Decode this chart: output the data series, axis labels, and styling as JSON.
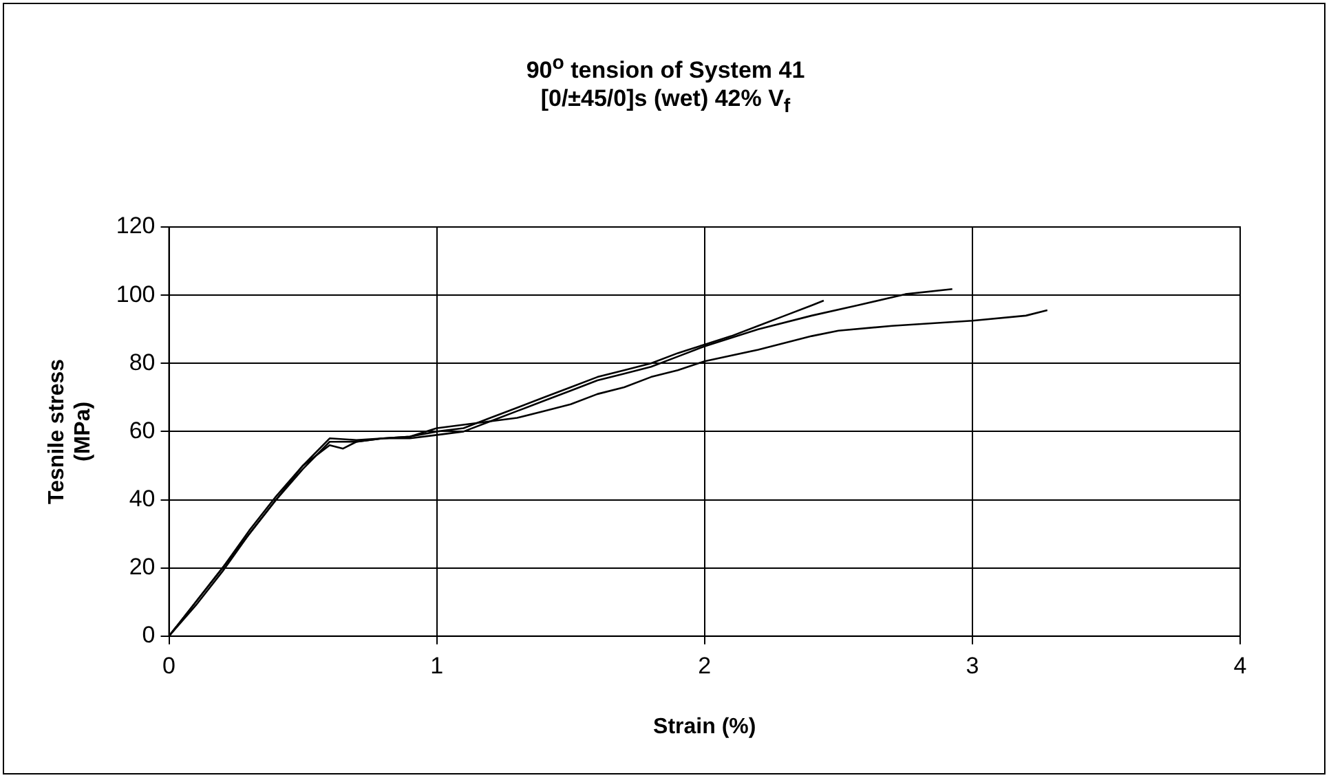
{
  "chart_data": {
    "type": "line",
    "title": "90$^{o}$ tension of System 41",
    "subtitle": "[0/±45/0]s (wet) 42% V$_{f}$",
    "xlabel": "Strain (%)",
    "ylabel": "Tesnile stress (MPa)",
    "xlim": [
      0,
      4
    ],
    "xticks": [
      0,
      1,
      2,
      3,
      4
    ],
    "ylim": [
      0,
      120
    ],
    "yticks": [
      0,
      20,
      40,
      60,
      80,
      100,
      120
    ],
    "grid": true,
    "legend": false,
    "marker": "none",
    "line_style": "solid",
    "series": [
      {
        "color": "#000000",
        "x": [
          0,
          0.1,
          0.2,
          0.3,
          0.4,
          0.5,
          0.6,
          0.65,
          0.7,
          0.8,
          0.9,
          1.0,
          1.1,
          1.2,
          1.3,
          1.4,
          1.5,
          1.6,
          1.7,
          1.8,
          1.9,
          2.0,
          2.1,
          2.2,
          2.3,
          2.4,
          2.445
        ],
        "values": [
          0,
          10,
          20,
          31,
          41,
          50,
          56,
          55,
          57,
          58,
          58.5,
          60,
          61,
          64,
          67,
          70,
          73,
          76,
          78,
          80,
          83,
          85.5,
          88,
          91,
          94,
          97,
          98.4
        ]
      },
      {
        "color": "#000000",
        "x": [
          0,
          0.1,
          0.2,
          0.3,
          0.4,
          0.5,
          0.6,
          0.7,
          0.8,
          0.9,
          1.0,
          1.1,
          1.2,
          1.3,
          1.4,
          1.5,
          1.6,
          1.7,
          1.8,
          1.9,
          2.0,
          2.2,
          2.4,
          2.57,
          2.75,
          2.925
        ],
        "values": [
          0,
          9,
          19,
          30,
          40,
          49,
          57,
          57,
          58,
          58,
          59,
          60,
          63,
          66,
          69,
          72,
          75,
          77,
          79,
          82,
          85,
          90,
          94,
          97,
          100.3,
          101.8
        ]
      },
      {
        "color": "#000000",
        "x": [
          0,
          0.1,
          0.2,
          0.3,
          0.4,
          0.5,
          0.6,
          0.7,
          0.8,
          0.9,
          1.0,
          1.1,
          1.2,
          1.3,
          1.4,
          1.5,
          1.6,
          1.7,
          1.8,
          1.9,
          2.0,
          2.2,
          2.4,
          2.5,
          2.7,
          3.0,
          3.2,
          3.28
        ],
        "values": [
          0,
          10,
          20,
          30,
          40,
          50,
          58,
          57.5,
          58,
          58.5,
          61,
          62,
          63,
          64,
          66,
          68,
          71,
          73,
          76,
          78,
          80.6,
          84,
          88,
          89.6,
          91,
          92.5,
          94,
          95.6
        ]
      }
    ]
  }
}
